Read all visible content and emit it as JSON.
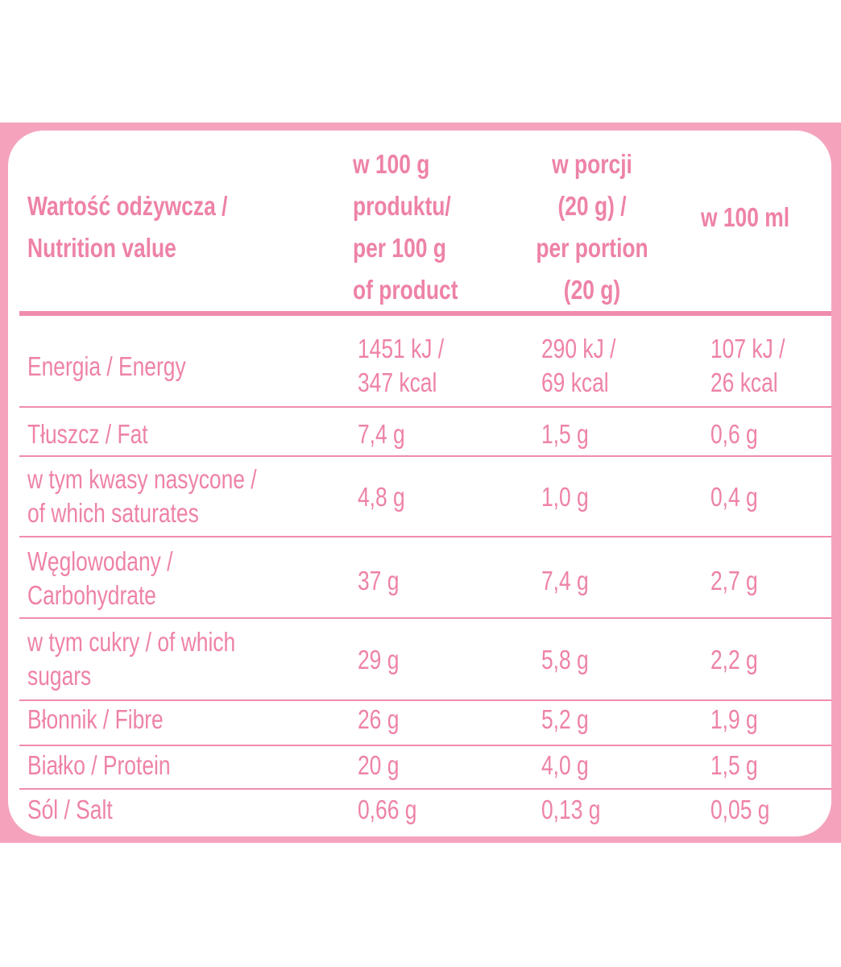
{
  "table": {
    "header": {
      "label": "Wartość odżywcza /\nNutrition value",
      "col1": "w 100 g\nproduktu/\nper 100 g\nof product",
      "col2": "w porcji\n(20 g) /\nper portion\n(20 g)",
      "col3": "w 100 ml"
    },
    "rows": [
      {
        "label": "Energia / Energy",
        "col1": "1451 kJ /\n347 kcal",
        "col2": "290 kJ /\n69 kcal",
        "col3": "107 kJ /\n26 kcal"
      },
      {
        "label": "Tłuszcz / Fat",
        "col1": "7,4 g",
        "col2": "1,5 g",
        "col3": "0,6 g"
      },
      {
        "label": "w tym kwasy nasycone /\nof which saturates",
        "col1": "4,8 g",
        "col2": "1,0 g",
        "col3": "0,4 g"
      },
      {
        "label": "Węglowodany /\nCarbohydrate",
        "col1": "37 g",
        "col2": "7,4 g",
        "col3": "2,7 g"
      },
      {
        "label": "w tym cukry / of which\nsugars",
        "col1": "29 g",
        "col2": "5,8 g",
        "col3": "2,2 g"
      },
      {
        "label": "Błonnik / Fibre",
        "col1": "26 g",
        "col2": "5,2 g",
        "col3": "1,9 g"
      },
      {
        "label": "Białko / Protein",
        "col1": "20 g",
        "col2": "4,0 g",
        "col3": "1,5 g"
      },
      {
        "label": "Sól / Salt",
        "col1": "0,66 g",
        "col2": "0,13 g",
        "col3": "0,05 g"
      }
    ]
  }
}
